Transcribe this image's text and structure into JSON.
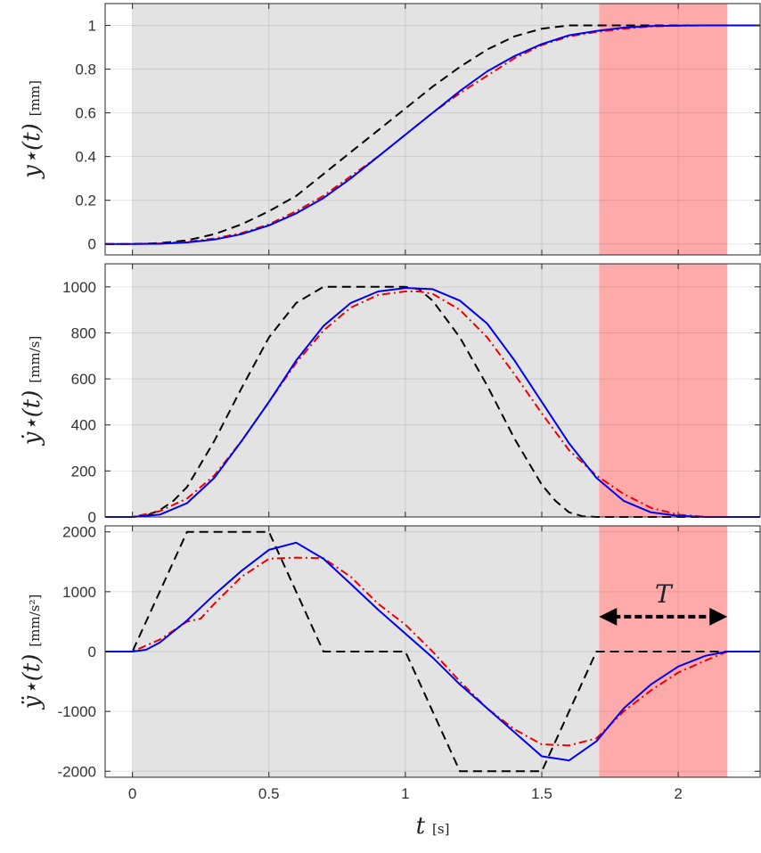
{
  "chart_data": {
    "type": "line",
    "x": {
      "label": "t",
      "unit": "[s]",
      "range": [
        -0.1,
        2.3
      ],
      "ticks": [
        0,
        0.5,
        1,
        1.5,
        2
      ],
      "tick_labels": [
        "0",
        "0.5",
        "1",
        "1.5",
        "2"
      ]
    },
    "shaded_regions": [
      {
        "from": 0,
        "to": 1.71,
        "color": "#e3e3e3"
      },
      {
        "from": 1.71,
        "to": 2.18,
        "color": "#ffaaaa"
      }
    ],
    "annotation": {
      "text": "T",
      "from": 1.71,
      "to": 2.18,
      "y_panel": 2,
      "y": 1000
    },
    "colors": {
      "blue": "#0000ee",
      "red_dashdot": "#ee0000",
      "black_dashed": "#000000"
    },
    "grid": true,
    "panels": [
      {
        "ylabel": "y⋆(t)",
        "yunit": "[mm]",
        "ylim": [
          -0.05,
          1.1
        ],
        "yticks": [
          0,
          0.2,
          0.4,
          0.6,
          0.8,
          1
        ],
        "ytick_labels": [
          "0",
          "0.2",
          "0.4",
          "0.6",
          "0.8",
          "1"
        ],
        "series": [
          {
            "style": "black-dashed",
            "x": [
              -0.1,
              0,
              0.1,
              0.2,
              0.3,
              0.4,
              0.5,
              0.6,
              0.7,
              0.8,
              0.9,
              1.0,
              1.1,
              1.2,
              1.3,
              1.4,
              1.5,
              1.6,
              1.7,
              2.3
            ],
            "values": [
              0,
              0,
              0.004,
              0.017,
              0.045,
              0.09,
              0.15,
              0.22,
              0.32,
              0.42,
              0.52,
              0.62,
              0.72,
              0.81,
              0.89,
              0.95,
              0.985,
              1.0,
              1.0,
              1.0
            ]
          },
          {
            "style": "red-dashdot",
            "x": [
              -0.1,
              0,
              0.1,
              0.2,
              0.3,
              0.4,
              0.5,
              0.6,
              0.7,
              0.8,
              0.9,
              1.0,
              1.1,
              1.2,
              1.3,
              1.4,
              1.5,
              1.6,
              1.7,
              1.8,
              1.9,
              2.0,
              2.1,
              2.18,
              2.3
            ],
            "values": [
              0,
              0,
              0.002,
              0.01,
              0.025,
              0.05,
              0.09,
              0.15,
              0.22,
              0.31,
              0.4,
              0.5,
              0.6,
              0.69,
              0.77,
              0.85,
              0.91,
              0.95,
              0.97,
              0.985,
              0.995,
              0.999,
              1.0,
              1.0,
              1.0
            ]
          },
          {
            "style": "blue-solid",
            "x": [
              -0.1,
              0,
              0.1,
              0.2,
              0.3,
              0.4,
              0.5,
              0.6,
              0.7,
              0.8,
              0.9,
              1.0,
              1.1,
              1.2,
              1.3,
              1.4,
              1.5,
              1.6,
              1.7,
              1.8,
              1.9,
              2.0,
              2.1,
              2.18,
              2.3
            ],
            "values": [
              0,
              0,
              0.001,
              0.007,
              0.02,
              0.045,
              0.085,
              0.14,
              0.21,
              0.3,
              0.4,
              0.5,
              0.6,
              0.7,
              0.79,
              0.86,
              0.915,
              0.955,
              0.975,
              0.99,
              0.997,
              0.999,
              1.0,
              1.0,
              1.0
            ]
          }
        ]
      },
      {
        "ylabel": "ẏ⋆(t)",
        "yunit": "[mm/s]",
        "ylim": [
          0,
          1100
        ],
        "yticks": [
          0,
          200,
          400,
          600,
          800,
          1000
        ],
        "ytick_labels": [
          "0",
          "200",
          "400",
          "600",
          "800",
          "1000"
        ],
        "series": [
          {
            "style": "black-dashed",
            "x": [
              -0.1,
              0,
              0.05,
              0.1,
              0.15,
              0.2,
              0.3,
              0.4,
              0.5,
              0.6,
              0.7,
              1.0,
              1.05,
              1.1,
              1.2,
              1.3,
              1.4,
              1.5,
              1.55,
              1.6,
              1.65,
              1.7,
              2.3
            ],
            "values": [
              0,
              0,
              5,
              30,
              70,
              130,
              330,
              560,
              780,
              930,
              1000,
              1000,
              990,
              940,
              780,
              570,
              340,
              140,
              70,
              20,
              3,
              0,
              0
            ]
          },
          {
            "style": "red-dashdot",
            "x": [
              -0.1,
              0,
              0.1,
              0.2,
              0.3,
              0.4,
              0.5,
              0.6,
              0.7,
              0.8,
              0.9,
              1.0,
              1.05,
              1.1,
              1.2,
              1.3,
              1.4,
              1.5,
              1.6,
              1.7,
              1.8,
              1.9,
              2.0,
              2.1,
              2.3
            ],
            "values": [
              0,
              0,
              25,
              80,
              180,
              330,
              500,
              670,
              810,
              910,
              965,
              980,
              980,
              970,
              900,
              780,
              620,
              450,
              290,
              180,
              100,
              40,
              10,
              0,
              0
            ]
          },
          {
            "style": "blue-solid",
            "x": [
              -0.1,
              0,
              0.1,
              0.2,
              0.3,
              0.4,
              0.5,
              0.6,
              0.7,
              0.8,
              0.9,
              1.0,
              1.1,
              1.2,
              1.3,
              1.4,
              1.5,
              1.6,
              1.7,
              1.8,
              1.9,
              2.0,
              2.1,
              2.18,
              2.3
            ],
            "values": [
              0,
              0,
              10,
              60,
              170,
              330,
              500,
              680,
              830,
              930,
              980,
              995,
              990,
              940,
              840,
              680,
              500,
              320,
              170,
              70,
              20,
              5,
              0,
              0,
              0
            ]
          }
        ]
      },
      {
        "ylabel": "ÿ⋆(t)",
        "yunit": "[mm/s²]",
        "ylim": [
          -2100,
          2100
        ],
        "yticks": [
          2000,
          1000,
          0,
          -1000,
          -2000
        ],
        "ytick_labels": [
          "2000",
          "1000",
          "0",
          "-1000",
          "-2000"
        ],
        "series": [
          {
            "style": "black-dashed",
            "x": [
              -0.1,
              0,
              0.2,
              0.5,
              0.7,
              1.0,
              1.2,
              1.5,
              1.7,
              2.3
            ],
            "values": [
              0,
              0,
              2000,
              2000,
              0,
              0,
              -2000,
              -2000,
              0,
              0
            ]
          },
          {
            "style": "red-dashdot",
            "x": [
              -0.1,
              0,
              0.1,
              0.2,
              0.25,
              0.3,
              0.4,
              0.5,
              0.6,
              0.7,
              0.8,
              0.9,
              1.0,
              1.1,
              1.2,
              1.3,
              1.4,
              1.5,
              1.6,
              1.7,
              1.8,
              1.9,
              2.0,
              2.1,
              2.18,
              2.3
            ],
            "values": [
              0,
              0,
              200,
              500,
              550,
              800,
              1250,
              1550,
              1570,
              1560,
              1250,
              800,
              450,
              0,
              -500,
              -950,
              -1300,
              -1550,
              -1570,
              -1450,
              -1000,
              -650,
              -350,
              -150,
              0,
              0
            ]
          },
          {
            "style": "blue-solid",
            "x": [
              -0.1,
              0,
              0.05,
              0.1,
              0.2,
              0.3,
              0.4,
              0.5,
              0.6,
              0.7,
              0.8,
              0.9,
              1.0,
              1.1,
              1.2,
              1.3,
              1.4,
              1.5,
              1.6,
              1.7,
              1.8,
              1.9,
              2.0,
              2.1,
              2.18,
              2.3
            ],
            "values": [
              0,
              0,
              30,
              150,
              520,
              950,
              1350,
              1700,
              1820,
              1550,
              1130,
              700,
              300,
              -100,
              -550,
              -950,
              -1350,
              -1750,
              -1820,
              -1500,
              -950,
              -550,
              -250,
              -70,
              0,
              0
            ]
          }
        ]
      }
    ]
  }
}
